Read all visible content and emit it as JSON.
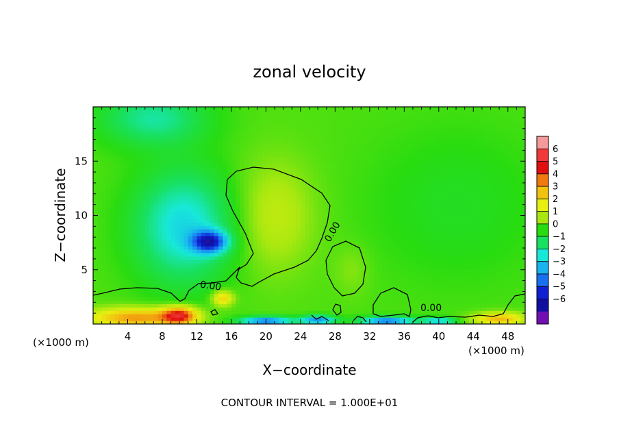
{
  "chart_data": {
    "type": "heatmap",
    "title": "zonal velocity",
    "xlabel": "X−coordinate",
    "ylabel": "Z−coordinate",
    "x_unit": "(×1000 m)",
    "y_unit": "(×1000 m)",
    "xlim": [
      0,
      50
    ],
    "ylim": [
      0,
      20
    ],
    "x_ticks": [
      4,
      8,
      12,
      16,
      20,
      24,
      28,
      32,
      36,
      40,
      44,
      48
    ],
    "y_ticks": [
      5,
      10,
      15
    ],
    "x_tick_labels": [
      "4",
      "8",
      "12",
      "16",
      "20",
      "24",
      "28",
      "32",
      "36",
      "40",
      "44",
      "48"
    ],
    "y_tick_labels": [
      "5",
      "10",
      "15"
    ],
    "colorbar": {
      "levels": [
        6,
        5,
        4,
        3,
        2,
        1,
        0,
        -1,
        -2,
        -3,
        -4,
        -5,
        -6
      ],
      "labels": [
        "6",
        "5",
        "4",
        "3",
        "2",
        "1",
        "0",
        "−1",
        "−2",
        "−3",
        "−4",
        "−5",
        "−6"
      ],
      "colors": [
        "#f49a9a",
        "#f03a3a",
        "#e01010",
        "#f07a10",
        "#f2c210",
        "#e8f010",
        "#a8e810",
        "#28dc10",
        "#18e060",
        "#18e8d8",
        "#18b4f0",
        "#1870f0",
        "#1020d0",
        "#1010a0",
        "#7010b0"
      ]
    },
    "contour_label": "0.00",
    "contour_interval_text": "CONTOUR INTERVAL = 1.000E+01",
    "background_value": 0.3,
    "features": [
      {
        "cx": 10.5,
        "cz": 9.0,
        "rx": 5.5,
        "rz": 5.0,
        "value": -2.6
      },
      {
        "cx": 13.5,
        "cz": 7.6,
        "rx": 2.0,
        "rz": 1.0,
        "value": -5.0
      },
      {
        "cx": 7.0,
        "cz": 19.0,
        "rx": 6.0,
        "rz": 2.5,
        "value": -1.7
      },
      {
        "cx": 21.0,
        "cz": 10.0,
        "rx": 4.5,
        "rz": 5.0,
        "value": 1.5
      },
      {
        "cx": 30.0,
        "cz": 5.0,
        "rx": 2.0,
        "rz": 2.2,
        "value": 0.8
      },
      {
        "cx": 42.0,
        "cz": 11.0,
        "rx": 10.0,
        "rz": 7.0,
        "value": -0.3
      },
      {
        "cx": 5.0,
        "cz": 0.6,
        "rx": 5.5,
        "rz": 0.9,
        "value": 4.0
      },
      {
        "cx": 10.0,
        "cz": 0.8,
        "rx": 2.0,
        "rz": 0.8,
        "value": 5.0
      },
      {
        "cx": 15.0,
        "cz": 2.4,
        "rx": 1.2,
        "rz": 0.7,
        "value": 3.0
      },
      {
        "cx": 20.0,
        "cz": 0.3,
        "rx": 3.0,
        "rz": 0.4,
        "value": -4.5
      },
      {
        "cx": 26.0,
        "cz": 0.4,
        "rx": 2.0,
        "rz": 0.4,
        "value": -4.0
      },
      {
        "cx": 34.0,
        "cz": 0.3,
        "rx": 3.0,
        "rz": 0.4,
        "value": -4.5
      },
      {
        "cx": 47.0,
        "cz": 0.5,
        "rx": 3.0,
        "rz": 0.6,
        "value": 3.5
      },
      {
        "cx": 40.0,
        "cz": 0.3,
        "rx": 2.0,
        "rz": 0.3,
        "value": -3.0
      }
    ]
  }
}
